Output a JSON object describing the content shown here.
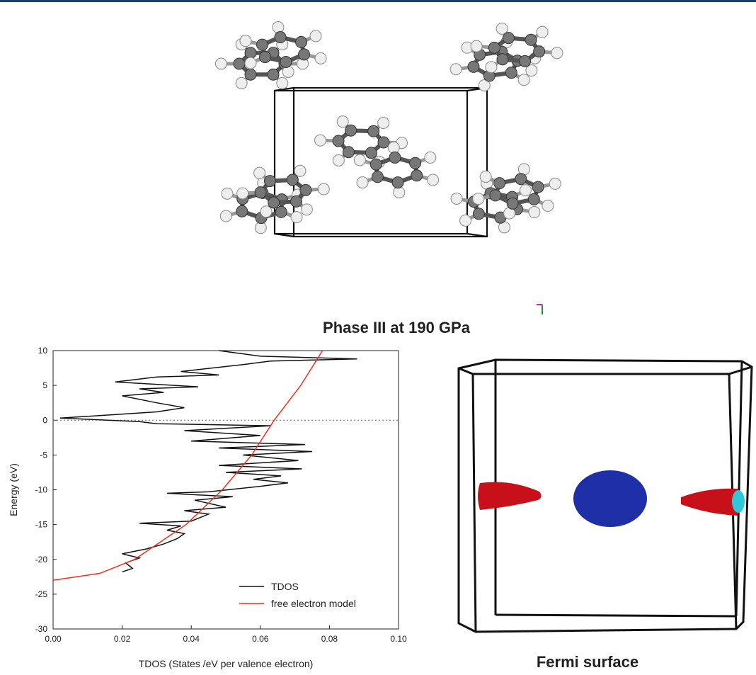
{
  "structure": {
    "caption": "Phase III at 190 GPa"
  },
  "chart_data": {
    "type": "line",
    "x_label": "TDOS (States /eV per valence electron)",
    "y_label": "Energy (eV)",
    "xlim": [
      0,
      0.1
    ],
    "xticks": [
      {
        "value": 0,
        "label": "0.00"
      },
      {
        "value": 0.02,
        "label": "0.02"
      },
      {
        "value": 0.04,
        "label": "0.04"
      },
      {
        "value": 0.06,
        "label": "0.06"
      },
      {
        "value": 0.08,
        "label": "0.08"
      },
      {
        "value": 0.1,
        "label": "0.10"
      }
    ],
    "ylim": [
      -30,
      10
    ],
    "yticks": [
      10,
      5,
      0,
      -5,
      -10,
      -15,
      -20,
      -25,
      -30
    ],
    "reference_y": 0,
    "legend": "lower-right",
    "series": [
      {
        "name": "TDOS",
        "color": "#111111",
        "x": [
          0.02,
          0.023,
          0.021,
          0.025,
          0.02,
          0.027,
          0.032,
          0.036,
          0.038,
          0.033,
          0.037,
          0.025,
          0.04,
          0.045,
          0.038,
          0.05,
          0.041,
          0.052,
          0.033,
          0.045,
          0.06,
          0.068,
          0.058,
          0.066,
          0.05,
          0.072,
          0.048,
          0.071,
          0.055,
          0.075,
          0.048,
          0.073,
          0.04,
          0.06,
          0.038,
          0.063,
          0.03,
          0.025,
          0.002,
          0.03,
          0.038,
          0.03,
          0.02,
          0.032,
          0.025,
          0.042,
          0.018,
          0.03,
          0.048,
          0.037,
          0.055,
          0.063,
          0.088,
          0.06,
          0.048
        ],
        "values": [
          -21.8,
          -21.3,
          -20.5,
          -19.8,
          -19.2,
          -18.5,
          -17.8,
          -17,
          -16.3,
          -15.8,
          -15.2,
          -14.8,
          -14.5,
          -13.5,
          -13,
          -12.5,
          -11.5,
          -11,
          -10.5,
          -10.3,
          -9.5,
          -9,
          -8.5,
          -8,
          -7.5,
          -7,
          -6.5,
          -5.8,
          -5,
          -4.5,
          -4,
          -3.5,
          -3,
          -2.2,
          -1.5,
          -0.8,
          -0.5,
          -0.2,
          0.3,
          1.2,
          1.8,
          2.5,
          3.5,
          4,
          4.5,
          4.8,
          5.5,
          6.2,
          6.5,
          7,
          8,
          8.5,
          8.8,
          9.2,
          10
        ]
      },
      {
        "name": "free electron model",
        "color": "#e8321e",
        "x": [
          0,
          0.0136,
          0.0236,
          0.0385,
          0.049,
          0.0575,
          0.064,
          0.0717,
          0.078
        ],
        "values": [
          -23,
          -22,
          -20,
          -15,
          -10,
          -5,
          0,
          5,
          10
        ]
      }
    ]
  },
  "fermi": {
    "caption": "Fermi surface"
  }
}
